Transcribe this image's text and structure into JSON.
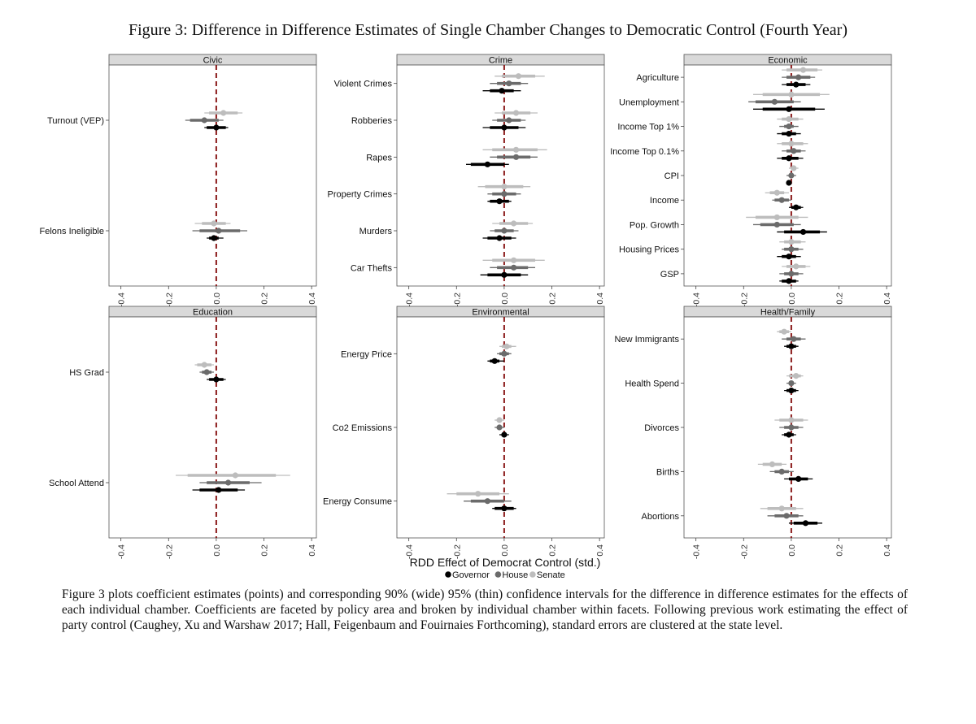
{
  "figure": {
    "title": "Figure 3: Difference in Difference Estimates of Single Chamber Changes to Democratic Control (Fourth Year)",
    "caption": "Figure 3 plots coefficient estimates (points) and corresponding 90% (wide) 95% (thin) confidence intervals for the difference in difference estimates for the effects of each individual chamber. Coefficients are faceted by policy area and broken by individual chamber within facets. Following previous work estimating the effect of party control (Caughey, Xu and Warshaw 2017; Hall, Feigenbaum and Fouirnaies Forthcoming), standard errors are clustered at the state level."
  },
  "chart_data": {
    "type": "scatter",
    "xlabel": "RDD Effect of Democrat Control (std.)",
    "xlim": [
      -0.45,
      0.42
    ],
    "xticks": [
      -0.4,
      -0.2,
      0.0,
      0.2,
      0.4
    ],
    "xtick_labels": [
      "-0.4",
      "-0.2",
      "0.0",
      "0.2",
      "0.4"
    ],
    "reference_line": 0.0,
    "legend": {
      "placement": "bottom",
      "entries": [
        {
          "name": "Governor",
          "color": "#000000"
        },
        {
          "name": "House",
          "color": "#6b6b6b"
        },
        {
          "name": "Senate",
          "color": "#bdbdbd"
        }
      ]
    },
    "colors": {
      "Governor": "#000000",
      "House": "#6b6b6b",
      "Senate": "#bdbdbd",
      "reference": "#8b1a1a",
      "strip": "#d9d9d9"
    },
    "facets": [
      {
        "name": "Civic",
        "outcomes": [
          {
            "label": "Turnout (VEP)",
            "Senate": [
              0.03,
              -0.03,
              0.09,
              -0.05,
              0.11
            ],
            "House": [
              -0.05,
              -0.11,
              0.01,
              -0.13,
              0.03
            ],
            "Governor": [
              0.0,
              -0.04,
              0.04,
              -0.05,
              0.05
            ]
          },
          {
            "label": "Felons Ineligible",
            "Senate": [
              -0.01,
              -0.06,
              0.04,
              -0.09,
              0.06
            ],
            "House": [
              0.01,
              -0.07,
              0.1,
              -0.1,
              0.13
            ],
            "Governor": [
              -0.01,
              -0.03,
              0.01,
              -0.04,
              0.03
            ]
          }
        ]
      },
      {
        "name": "Crime",
        "outcomes": [
          {
            "label": "Violent Crimes",
            "Senate": [
              0.06,
              -0.01,
              0.13,
              -0.04,
              0.17
            ],
            "House": [
              0.02,
              -0.03,
              0.07,
              -0.06,
              0.1
            ],
            "Governor": [
              -0.01,
              -0.06,
              0.04,
              -0.09,
              0.07
            ]
          },
          {
            "label": "Robberies",
            "Senate": [
              0.05,
              -0.01,
              0.11,
              -0.04,
              0.14
            ],
            "House": [
              0.02,
              -0.03,
              0.07,
              -0.05,
              0.09
            ],
            "Governor": [
              0.0,
              -0.06,
              0.06,
              -0.09,
              0.09
            ]
          },
          {
            "label": "Rapes",
            "Senate": [
              0.05,
              -0.05,
              0.14,
              -0.09,
              0.18
            ],
            "House": [
              0.05,
              -0.03,
              0.11,
              -0.06,
              0.14
            ],
            "Governor": [
              -0.07,
              -0.14,
              0.0,
              -0.16,
              0.02
            ]
          },
          {
            "label": "Property Crimes",
            "Senate": [
              0.0,
              -0.08,
              0.08,
              -0.11,
              0.11
            ],
            "House": [
              0.0,
              -0.05,
              0.05,
              -0.07,
              0.07
            ],
            "Governor": [
              -0.02,
              -0.06,
              0.02,
              -0.07,
              0.03
            ]
          },
          {
            "label": "Murders",
            "Senate": [
              0.04,
              -0.02,
              0.1,
              -0.05,
              0.12
            ],
            "House": [
              0.0,
              -0.04,
              0.04,
              -0.06,
              0.06
            ],
            "Governor": [
              -0.02,
              -0.07,
              0.03,
              -0.09,
              0.05
            ]
          },
          {
            "label": "Car Thefts",
            "Senate": [
              0.04,
              -0.05,
              0.13,
              -0.09,
              0.17
            ],
            "House": [
              0.04,
              -0.03,
              0.1,
              -0.06,
              0.13
            ],
            "Governor": [
              0.0,
              -0.07,
              0.07,
              -0.1,
              0.1
            ]
          }
        ]
      },
      {
        "name": "Economic",
        "outcomes": [
          {
            "label": "Agriculture",
            "Senate": [
              0.05,
              -0.02,
              0.11,
              -0.04,
              0.13
            ],
            "House": [
              0.03,
              -0.02,
              0.08,
              -0.04,
              0.1
            ],
            "Governor": [
              0.02,
              -0.02,
              0.06,
              -0.04,
              0.08
            ]
          },
          {
            "label": "Unemployment",
            "Senate": [
              0.0,
              -0.12,
              0.12,
              -0.16,
              0.16
            ],
            "House": [
              -0.07,
              -0.15,
              0.01,
              -0.18,
              0.04
            ],
            "Governor": [
              -0.01,
              -0.12,
              0.1,
              -0.16,
              0.14
            ]
          },
          {
            "label": "Income Top 1%",
            "Senate": [
              -0.01,
              -0.04,
              0.03,
              -0.06,
              0.05
            ],
            "House": [
              -0.01,
              -0.03,
              0.01,
              -0.05,
              0.03
            ],
            "Governor": [
              -0.01,
              -0.04,
              0.02,
              -0.06,
              0.04
            ]
          },
          {
            "label": "Income Top 0.1%",
            "Senate": [
              0.0,
              -0.04,
              0.05,
              -0.06,
              0.07
            ],
            "House": [
              0.01,
              -0.02,
              0.04,
              -0.04,
              0.06
            ],
            "Governor": [
              -0.01,
              -0.04,
              0.03,
              -0.06,
              0.05
            ]
          },
          {
            "label": "CPI",
            "Senate": [
              0.01,
              -0.0,
              0.02,
              -0.01,
              0.03
            ],
            "House": [
              0.0,
              -0.01,
              0.01,
              -0.02,
              0.02
            ],
            "Governor": [
              -0.01,
              -0.02,
              0.0,
              -0.02,
              0.0
            ]
          },
          {
            "label": "Income",
            "Senate": [
              -0.06,
              -0.09,
              -0.03,
              -0.11,
              -0.01
            ],
            "House": [
              -0.04,
              -0.07,
              -0.01,
              -0.08,
              0.0
            ],
            "Governor": [
              0.02,
              0.0,
              0.04,
              -0.01,
              0.05
            ]
          },
          {
            "label": "Pop. Growth",
            "Senate": [
              -0.06,
              -0.15,
              0.03,
              -0.19,
              0.07
            ],
            "House": [
              -0.06,
              -0.13,
              0.01,
              -0.16,
              0.04
            ],
            "Governor": [
              0.05,
              -0.03,
              0.12,
              -0.06,
              0.15
            ]
          },
          {
            "label": "Housing Prices",
            "Senate": [
              0.0,
              -0.03,
              0.04,
              -0.05,
              0.06
            ],
            "House": [
              0.0,
              -0.03,
              0.03,
              -0.04,
              0.05
            ],
            "Governor": [
              -0.01,
              -0.04,
              0.02,
              -0.06,
              0.04
            ]
          },
          {
            "label": "GSP",
            "Senate": [
              0.02,
              -0.02,
              0.06,
              -0.04,
              0.08
            ],
            "House": [
              0.0,
              -0.03,
              0.03,
              -0.05,
              0.05
            ],
            "Governor": [
              -0.01,
              -0.04,
              0.02,
              -0.05,
              0.03
            ]
          }
        ]
      },
      {
        "name": "Education",
        "outcomes": [
          {
            "label": "HS Grad",
            "Senate": [
              -0.05,
              -0.08,
              -0.02,
              -0.09,
              -0.01
            ],
            "House": [
              -0.04,
              -0.06,
              -0.02,
              -0.07,
              -0.01
            ],
            "Governor": [
              0.0,
              -0.03,
              0.03,
              -0.04,
              0.04
            ]
          },
          {
            "label": "School Attend",
            "Senate": [
              0.08,
              -0.12,
              0.25,
              -0.17,
              0.31
            ],
            "House": [
              0.05,
              -0.04,
              0.14,
              -0.07,
              0.19
            ],
            "Governor": [
              0.01,
              -0.07,
              0.09,
              -0.1,
              0.12
            ]
          }
        ]
      },
      {
        "name": "Environmental",
        "outcomes": [
          {
            "label": "Energy Price",
            "Senate": [
              0.01,
              -0.01,
              0.03,
              -0.02,
              0.05
            ],
            "House": [
              0.0,
              -0.02,
              0.02,
              -0.03,
              0.03
            ],
            "Governor": [
              -0.04,
              -0.06,
              -0.02,
              -0.07,
              0.0
            ]
          },
          {
            "label": "Co2 Emissions",
            "Senate": [
              -0.02,
              -0.03,
              -0.01,
              -0.04,
              0.0
            ],
            "House": [
              -0.02,
              -0.03,
              -0.01,
              -0.04,
              0.0
            ],
            "Governor": [
              0.0,
              -0.01,
              0.01,
              -0.02,
              0.02
            ]
          },
          {
            "label": "Energy Consume",
            "Senate": [
              -0.11,
              -0.2,
              -0.02,
              -0.24,
              0.02
            ],
            "House": [
              -0.07,
              -0.14,
              0.0,
              -0.17,
              0.03
            ],
            "Governor": [
              0.0,
              -0.04,
              0.04,
              -0.05,
              0.05
            ]
          }
        ]
      },
      {
        "name": "Health/Family",
        "outcomes": [
          {
            "label": "New Immigrants",
            "Senate": [
              -0.03,
              -0.05,
              -0.01,
              -0.06,
              0.0
            ],
            "House": [
              0.01,
              -0.02,
              0.04,
              -0.04,
              0.06
            ],
            "Governor": [
              0.0,
              -0.02,
              0.02,
              -0.03,
              0.03
            ]
          },
          {
            "label": "Health Spend",
            "Senate": [
              0.02,
              -0.01,
              0.04,
              -0.02,
              0.05
            ],
            "House": [
              0.0,
              -0.01,
              0.01,
              -0.02,
              0.02
            ],
            "Governor": [
              0.0,
              -0.02,
              0.02,
              -0.03,
              0.03
            ]
          },
          {
            "label": "Divorces",
            "Senate": [
              0.0,
              -0.05,
              0.05,
              -0.07,
              0.07
            ],
            "House": [
              0.0,
              -0.03,
              0.03,
              -0.05,
              0.05
            ],
            "Governor": [
              -0.01,
              -0.03,
              0.01,
              -0.04,
              0.02
            ]
          },
          {
            "label": "Births",
            "Senate": [
              -0.08,
              -0.12,
              -0.04,
              -0.14,
              -0.02
            ],
            "House": [
              -0.04,
              -0.07,
              -0.01,
              -0.09,
              0.01
            ],
            "Governor": [
              0.03,
              -0.01,
              0.07,
              -0.03,
              0.09
            ]
          },
          {
            "label": "Abortions",
            "Senate": [
              -0.04,
              -0.1,
              0.02,
              -0.13,
              0.05
            ],
            "House": [
              -0.02,
              -0.07,
              0.03,
              -0.1,
              0.05
            ],
            "Governor": [
              0.06,
              0.01,
              0.11,
              -0.01,
              0.13
            ]
          }
        ]
      }
    ]
  }
}
